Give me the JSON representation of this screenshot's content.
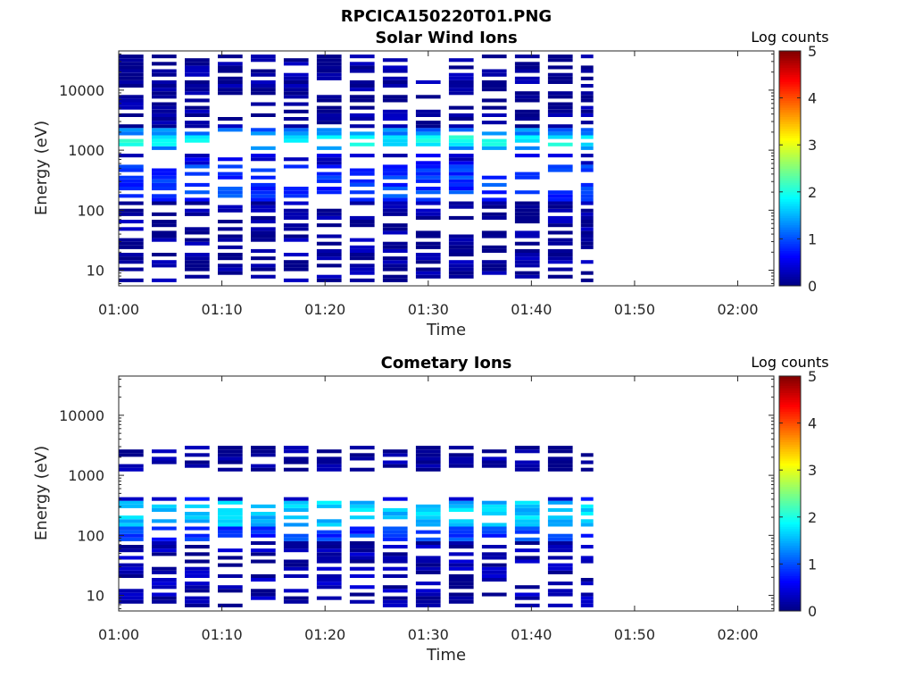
{
  "figure_title": "RPCICA150220T01.PNG",
  "chart_data": [
    {
      "type": "heatmap",
      "title": "Solar Wind Ions",
      "xlabel": "Time",
      "ylabel": "Energy (eV)",
      "y_scale": "log",
      "ylim": [
        5.5,
        45000
      ],
      "x_ticks": [
        "01:00",
        "01:10",
        "01:20",
        "01:30",
        "01:40",
        "01:50",
        "02:00"
      ],
      "y_ticks": [
        "10",
        "100",
        "1000",
        "10000"
      ],
      "colorbar": {
        "title": "Log counts",
        "ticks": [
          "0",
          "1",
          "2",
          "3",
          "4",
          "5"
        ],
        "range": [
          0,
          5
        ]
      },
      "x_extent_minutes": [
        0,
        63.5
      ],
      "data_end_minutes": 46,
      "scan_period_minutes": 3.2,
      "scan_width_minutes": 2.4,
      "scans_start_minutes": [
        0,
        3.2,
        6.4,
        9.6,
        12.8,
        16.0,
        19.2,
        22.4,
        25.6,
        28.8,
        32.0,
        35.2,
        38.4,
        41.6,
        44.8
      ],
      "energy_profile": [
        {
          "e_min": 1200,
          "e_max": 1700,
          "value": 1.9
        },
        {
          "e_min": 1000,
          "e_max": 2200,
          "value": 1.2
        },
        {
          "e_min": 150,
          "e_max": 600,
          "value": 0.9
        },
        {
          "e_min": 600,
          "e_max": 900,
          "value": 0.45
        },
        {
          "e_min": 6,
          "e_max": 150,
          "value": 0.12
        },
        {
          "e_min": 2200,
          "e_max": 40000,
          "value": 0.1
        }
      ]
    },
    {
      "type": "heatmap",
      "title": "Cometary Ions",
      "xlabel": "Time",
      "ylabel": "Energy (eV)",
      "y_scale": "log",
      "ylim": [
        5.5,
        45000
      ],
      "x_ticks": [
        "01:00",
        "01:10",
        "01:20",
        "01:30",
        "01:40",
        "01:50",
        "02:00"
      ],
      "y_ticks": [
        "10",
        "100",
        "1000",
        "10000"
      ],
      "colorbar": {
        "title": "Log counts",
        "ticks": [
          "0",
          "1",
          "2",
          "3",
          "4",
          "5"
        ],
        "range": [
          0,
          5
        ]
      },
      "x_extent_minutes": [
        0,
        63.5
      ],
      "data_end_minutes": 46,
      "scan_period_minutes": 3.2,
      "scan_width_minutes": 2.4,
      "scans_start_minutes": [
        0,
        3.2,
        6.4,
        9.6,
        12.8,
        16.0,
        19.2,
        22.4,
        25.6,
        28.8,
        32.0,
        35.2,
        38.4,
        41.6,
        44.8
      ],
      "energy_profile": [
        {
          "e_min": 150,
          "e_max": 350,
          "value": 1.6
        },
        {
          "e_min": 80,
          "e_max": 150,
          "value": 0.9
        },
        {
          "e_min": 350,
          "e_max": 420,
          "value": 0.5
        },
        {
          "e_min": 6,
          "e_max": 80,
          "value": 0.2
        },
        {
          "e_min": 1200,
          "e_max": 3000,
          "value": 0.1
        }
      ]
    }
  ]
}
